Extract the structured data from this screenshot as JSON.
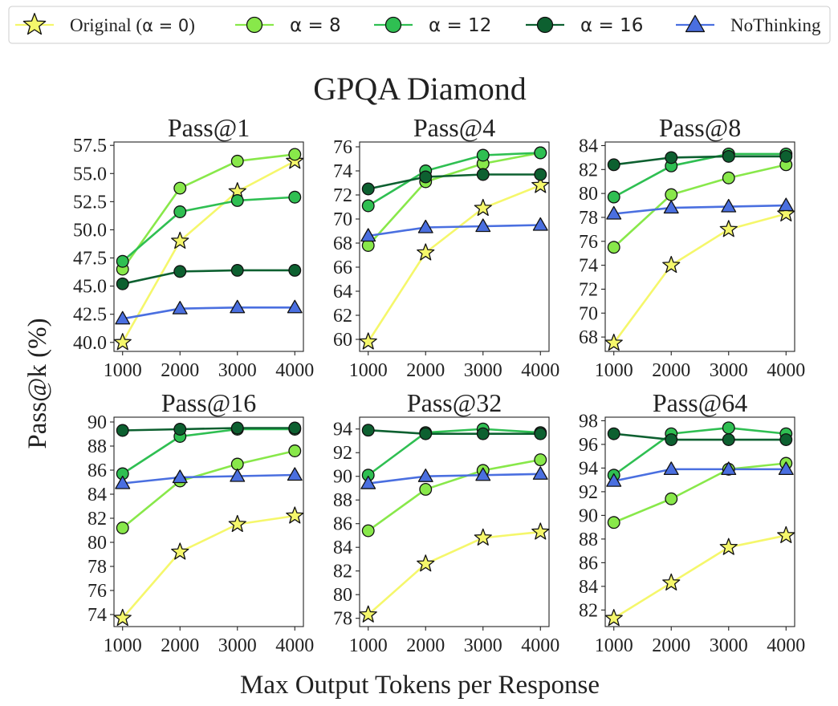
{
  "figure": {
    "suptitle": "GPQA Diamond",
    "xlabel": "Max Output Tokens per Response",
    "ylabel": "Pass@k (%)"
  },
  "legend": {
    "placement": "top",
    "entries": [
      {
        "series": "orig",
        "label_prefix": "Original (",
        "label_math": "α = 0",
        "label_suffix": ")"
      },
      {
        "series": "a8",
        "label_math": "α = 8"
      },
      {
        "series": "a12",
        "label_math": "α = 12"
      },
      {
        "series": "a16",
        "label_math": "α = 16"
      },
      {
        "series": "nothink",
        "label_text": "NoThinking"
      }
    ]
  },
  "styles": {
    "orig": {
      "color": "#f5f76b",
      "marker": "star"
    },
    "a8": {
      "color": "#88e84a",
      "marker": "circle"
    },
    "a12": {
      "color": "#2fbf52",
      "marker": "circle"
    },
    "a16": {
      "color": "#0d6030",
      "marker": "circle"
    },
    "nothink": {
      "color": "#4a6fe0",
      "marker": "triangle"
    }
  },
  "chart_data": [
    {
      "type": "line",
      "title": "Pass@1",
      "x": [
        1000,
        2000,
        3000,
        4000
      ],
      "xticks": [
        "1000",
        "2000",
        "3000",
        "4000"
      ],
      "ylim": [
        39.2,
        57.8
      ],
      "yticks": [
        40.0,
        42.5,
        45.0,
        47.5,
        50.0,
        52.5,
        55.0,
        57.5
      ],
      "ytick_labels": [
        "40.0",
        "42.5",
        "45.0",
        "47.5",
        "50.0",
        "52.5",
        "55.0",
        "57.5"
      ],
      "series": [
        {
          "id": "orig",
          "values": [
            40.0,
            49.0,
            53.4,
            56.1
          ]
        },
        {
          "id": "a8",
          "values": [
            46.5,
            53.7,
            56.1,
            56.7
          ]
        },
        {
          "id": "a12",
          "values": [
            47.2,
            51.6,
            52.6,
            52.9
          ]
        },
        {
          "id": "a16",
          "values": [
            45.2,
            46.3,
            46.4,
            46.4
          ]
        },
        {
          "id": "nothink",
          "values": [
            42.1,
            43.0,
            43.1,
            43.1
          ]
        }
      ]
    },
    {
      "type": "line",
      "title": "Pass@4",
      "x": [
        1000,
        2000,
        3000,
        4000
      ],
      "xticks": [
        "1000",
        "2000",
        "3000",
        "4000"
      ],
      "ylim": [
        59.0,
        76.4
      ],
      "yticks": [
        60,
        62,
        64,
        66,
        68,
        70,
        72,
        74,
        76
      ],
      "ytick_labels": [
        "60",
        "62",
        "64",
        "66",
        "68",
        "70",
        "72",
        "74",
        "76"
      ],
      "series": [
        {
          "id": "orig",
          "values": [
            59.8,
            67.2,
            70.9,
            72.8
          ]
        },
        {
          "id": "a8",
          "values": [
            67.8,
            73.1,
            74.6,
            75.5
          ]
        },
        {
          "id": "a12",
          "values": [
            71.1,
            74.0,
            75.3,
            75.5
          ]
        },
        {
          "id": "a16",
          "values": [
            72.5,
            73.5,
            73.7,
            73.7
          ]
        },
        {
          "id": "nothink",
          "values": [
            68.6,
            69.3,
            69.4,
            69.5
          ]
        }
      ]
    },
    {
      "type": "line",
      "title": "Pass@8",
      "x": [
        1000,
        2000,
        3000,
        4000
      ],
      "xticks": [
        "1000",
        "2000",
        "3000",
        "4000"
      ],
      "ylim": [
        66.8,
        84.3
      ],
      "yticks": [
        68,
        70,
        72,
        74,
        76,
        78,
        80,
        82,
        84
      ],
      "ytick_labels": [
        "68",
        "70",
        "72",
        "74",
        "76",
        "78",
        "80",
        "82",
        "84"
      ],
      "series": [
        {
          "id": "orig",
          "values": [
            67.5,
            74.0,
            77.0,
            78.3
          ]
        },
        {
          "id": "a8",
          "values": [
            75.5,
            79.9,
            81.3,
            82.4
          ]
        },
        {
          "id": "a12",
          "values": [
            79.7,
            82.3,
            83.3,
            83.3
          ]
        },
        {
          "id": "a16",
          "values": [
            82.4,
            83.0,
            83.1,
            83.1
          ]
        },
        {
          "id": "nothink",
          "values": [
            78.3,
            78.8,
            78.9,
            79.0
          ]
        }
      ]
    },
    {
      "type": "line",
      "title": "Pass@16",
      "x": [
        1000,
        2000,
        3000,
        4000
      ],
      "xticks": [
        "1000",
        "2000",
        "3000",
        "4000"
      ],
      "ylim": [
        73.0,
        90.4
      ],
      "yticks": [
        74,
        76,
        78,
        80,
        82,
        84,
        86,
        88,
        90
      ],
      "ytick_labels": [
        "74",
        "76",
        "78",
        "80",
        "82",
        "84",
        "86",
        "88",
        "90"
      ],
      "series": [
        {
          "id": "orig",
          "values": [
            73.7,
            79.2,
            81.5,
            82.2
          ]
        },
        {
          "id": "a8",
          "values": [
            81.2,
            85.1,
            86.5,
            87.6
          ]
        },
        {
          "id": "a12",
          "values": [
            85.7,
            88.8,
            89.4,
            89.4
          ]
        },
        {
          "id": "a16",
          "values": [
            89.3,
            89.4,
            89.5,
            89.5
          ]
        },
        {
          "id": "nothink",
          "values": [
            84.9,
            85.4,
            85.5,
            85.6
          ]
        }
      ]
    },
    {
      "type": "line",
      "title": "Pass@32",
      "x": [
        1000,
        2000,
        3000,
        4000
      ],
      "xticks": [
        "1000",
        "2000",
        "3000",
        "4000"
      ],
      "ylim": [
        77.3,
        95.0
      ],
      "yticks": [
        78,
        80,
        82,
        84,
        86,
        88,
        90,
        92,
        94
      ],
      "ytick_labels": [
        "78",
        "80",
        "82",
        "84",
        "86",
        "88",
        "90",
        "92",
        "94"
      ],
      "series": [
        {
          "id": "orig",
          "values": [
            78.3,
            82.6,
            84.8,
            85.3
          ]
        },
        {
          "id": "a8",
          "values": [
            85.4,
            88.9,
            90.5,
            91.4
          ]
        },
        {
          "id": "a12",
          "values": [
            90.1,
            93.7,
            94.0,
            93.7
          ]
        },
        {
          "id": "a16",
          "values": [
            93.9,
            93.6,
            93.6,
            93.6
          ]
        },
        {
          "id": "nothink",
          "values": [
            89.4,
            90.0,
            90.1,
            90.2
          ]
        }
      ]
    },
    {
      "type": "line",
      "title": "Pass@64",
      "x": [
        1000,
        2000,
        3000,
        4000
      ],
      "xticks": [
        "1000",
        "2000",
        "3000",
        "4000"
      ],
      "ylim": [
        80.6,
        98.3
      ],
      "yticks": [
        82,
        84,
        86,
        88,
        90,
        92,
        94,
        96,
        98
      ],
      "ytick_labels": [
        "82",
        "84",
        "86",
        "88",
        "90",
        "92",
        "94",
        "96",
        "98"
      ],
      "series": [
        {
          "id": "orig",
          "values": [
            81.3,
            84.3,
            87.3,
            88.3
          ]
        },
        {
          "id": "a8",
          "values": [
            89.4,
            91.4,
            93.9,
            94.4
          ]
        },
        {
          "id": "a12",
          "values": [
            93.4,
            96.9,
            97.4,
            96.9
          ]
        },
        {
          "id": "a16",
          "values": [
            96.9,
            96.4,
            96.4,
            96.4
          ]
        },
        {
          "id": "nothink",
          "values": [
            92.9,
            93.9,
            93.9,
            93.9
          ]
        }
      ]
    }
  ]
}
